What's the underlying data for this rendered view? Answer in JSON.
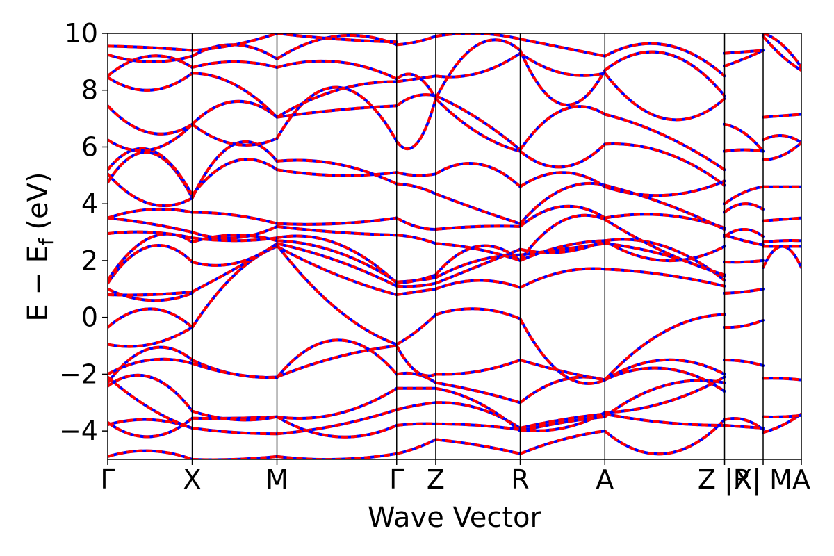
{
  "chart_data": {
    "type": "line",
    "title": "",
    "xlabel": "Wave Vector",
    "ylabel": {
      "main": "E − E",
      "sub": "f",
      "unit": " (eV)"
    },
    "ylim": [
      -5,
      10
    ],
    "y_ticks": [
      10,
      8,
      6,
      4,
      2,
      0,
      -2,
      -4
    ],
    "y_tick_labels": [
      "10",
      "8",
      "6",
      "4",
      "2",
      "0",
      "−2",
      "−4"
    ],
    "x_range": [
      0,
      1
    ],
    "kpoints": [
      {
        "label": "Γ",
        "x": 0.0
      },
      {
        "label": "X",
        "x": 0.1218
      },
      {
        "label": "M",
        "x": 0.244
      },
      {
        "label": "Γ",
        "x": 0.4166
      },
      {
        "label": "Z",
        "x": 0.4729
      },
      {
        "label": "R",
        "x": 0.5947
      },
      {
        "label": "A",
        "x": 0.7167
      },
      {
        "label": "Z |R",
        "x": 0.8893
      },
      {
        "label": "X| M",
        "x": 0.9449
      },
      {
        "label": "A",
        "x": 1.0
      }
    ],
    "colors": {
      "dft": "#ff0000",
      "model": "#0000ff"
    },
    "segments": [
      {
        "x0": 0.0,
        "x1": 0.1218,
        "bands": [
          [
            -4.9,
            -4.7,
            -5.0
          ],
          [
            -3.78,
            -3.6,
            -3.9
          ],
          [
            -3.7,
            -4.2,
            -3.55
          ],
          [
            -2.42,
            -2.1,
            -3.3
          ],
          [
            -2.3,
            -1.1,
            -1.5
          ],
          [
            -2.0,
            -1.5,
            -1.62
          ],
          [
            -2.1,
            -3.2,
            -3.9
          ],
          [
            -0.95,
            -0.95,
            -0.35
          ],
          [
            -0.35,
            0.3,
            -0.35
          ],
          [
            0.8,
            0.8,
            0.9
          ],
          [
            1.0,
            0.6,
            0.85
          ],
          [
            1.2,
            2.5,
            1.95
          ],
          [
            1.3,
            2.8,
            2.65
          ],
          [
            2.95,
            3.0,
            2.8
          ],
          [
            3.5,
            3.3,
            3.0
          ],
          [
            3.5,
            3.8,
            3.7
          ],
          [
            4.75,
            5.8,
            4.2
          ],
          [
            5.05,
            4.0,
            4.2
          ],
          [
            5.2,
            5.9,
            4.3
          ],
          [
            6.25,
            5.9,
            6.8
          ],
          [
            7.45,
            6.5,
            6.8
          ],
          [
            8.45,
            8.0,
            8.6
          ],
          [
            8.5,
            9.2,
            8.8
          ],
          [
            9.25,
            9.0,
            9.2
          ],
          [
            9.55,
            9.5,
            9.4
          ]
        ]
      },
      {
        "x0": 0.1218,
        "x1": 0.244,
        "bands": [
          [
            -5.0,
            -5.0,
            -4.9
          ],
          [
            -3.9,
            -4.05,
            -4.1
          ],
          [
            -3.55,
            -3.55,
            -3.5
          ],
          [
            -3.3,
            -3.6,
            -3.5
          ],
          [
            -1.5,
            -2.0,
            -2.1
          ],
          [
            -1.62,
            -2.0,
            -2.12
          ],
          [
            -0.35,
            1.5,
            2.5
          ],
          [
            0.9,
            1.7,
            2.55
          ],
          [
            1.95,
            1.9,
            2.6
          ],
          [
            2.65,
            2.9,
            2.7
          ],
          [
            2.8,
            2.7,
            2.8
          ],
          [
            3.0,
            2.8,
            3.2
          ],
          [
            3.7,
            3.6,
            3.3
          ],
          [
            4.2,
            6.1,
            5.5
          ],
          [
            4.3,
            5.5,
            5.2
          ],
          [
            6.8,
            6.1,
            6.3
          ],
          [
            6.8,
            7.6,
            7.05
          ],
          [
            8.6,
            8.2,
            7.05
          ],
          [
            8.8,
            9.0,
            8.8
          ],
          [
            9.2,
            9.6,
            9.1
          ],
          [
            9.4,
            9.6,
            10.0
          ]
        ]
      },
      {
        "x0": 0.244,
        "x1": 0.4166,
        "bands": [
          [
            -4.9,
            -5.0,
            -4.8
          ],
          [
            -4.1,
            -3.8,
            -3.25
          ],
          [
            -3.5,
            -3.4,
            -2.5
          ],
          [
            -3.5,
            -4.2,
            -3.8
          ],
          [
            -2.1,
            -1.4,
            -1.0
          ],
          [
            -2.12,
            -0.8,
            -2.0
          ],
          [
            2.5,
            1.5,
            0.8
          ],
          [
            2.55,
            0.3,
            -0.95
          ],
          [
            2.6,
            2.0,
            1.1
          ],
          [
            2.7,
            2.3,
            1.25
          ],
          [
            2.8,
            2.6,
            1.2
          ],
          [
            3.2,
            3.0,
            2.9
          ],
          [
            3.3,
            3.3,
            3.5
          ],
          [
            5.5,
            5.4,
            4.7
          ],
          [
            5.2,
            5.0,
            5.1
          ],
          [
            6.3,
            8.1,
            6.2
          ],
          [
            7.05,
            7.3,
            7.45
          ],
          [
            7.05,
            8.0,
            8.3
          ],
          [
            8.8,
            9.0,
            8.4
          ],
          [
            9.1,
            9.9,
            9.6
          ],
          [
            10.0,
            9.8,
            9.7
          ]
        ]
      },
      {
        "x0": 0.4166,
        "x1": 0.4729,
        "bands": [
          [
            -4.8,
            -4.6,
            -4.3
          ],
          [
            -3.25,
            -3.1,
            -3.0
          ],
          [
            -3.8,
            -3.75,
            -3.75
          ],
          [
            -2.5,
            -2.5,
            -2.5
          ],
          [
            -2.0,
            -2.0,
            -2.3
          ],
          [
            -1.0,
            -1.9,
            -2.0
          ],
          [
            -0.95,
            -0.5,
            0.1
          ],
          [
            0.8,
            0.9,
            1.0
          ],
          [
            1.1,
            1.1,
            1.2
          ],
          [
            1.25,
            1.3,
            1.4
          ],
          [
            1.2,
            1.3,
            1.5
          ],
          [
            2.9,
            2.8,
            2.6
          ],
          [
            3.5,
            3.2,
            3.1
          ],
          [
            4.7,
            4.6,
            4.35
          ],
          [
            5.1,
            5.0,
            5.05
          ],
          [
            6.2,
            6.1,
            7.7
          ],
          [
            7.45,
            7.8,
            7.8
          ],
          [
            8.3,
            8.4,
            8.5
          ],
          [
            8.4,
            8.5,
            7.7
          ],
          [
            9.6,
            9.7,
            9.9
          ]
        ]
      },
      {
        "x0": 0.4729,
        "x1": 0.5947,
        "bands": [
          [
            -4.3,
            -4.5,
            -4.8
          ],
          [
            -3.0,
            -3.2,
            -3.9
          ],
          [
            -3.75,
            -3.8,
            -3.95
          ],
          [
            -2.5,
            -3.0,
            -4.0
          ],
          [
            -2.3,
            -2.6,
            -3.0
          ],
          [
            -2.0,
            -1.9,
            -1.5
          ],
          [
            0.1,
            0.3,
            -0.05
          ],
          [
            1.0,
            1.3,
            1.05
          ],
          [
            1.2,
            1.8,
            2.4
          ],
          [
            1.4,
            2.0,
            2.2
          ],
          [
            1.5,
            2.5,
            2.0
          ],
          [
            2.6,
            2.4,
            2.0
          ],
          [
            3.1,
            3.2,
            3.2
          ],
          [
            4.35,
            3.8,
            3.3
          ],
          [
            5.05,
            5.4,
            4.6
          ],
          [
            7.7,
            6.5,
            5.85
          ],
          [
            7.8,
            7.0,
            5.9
          ],
          [
            8.5,
            8.6,
            9.3
          ],
          [
            7.7,
            9.6,
            9.4
          ],
          [
            9.9,
            10.0,
            9.8
          ]
        ]
      },
      {
        "x0": 0.5947,
        "x1": 0.7167,
        "bands": [
          [
            -4.8,
            -4.3,
            -4.0
          ],
          [
            -3.9,
            -3.6,
            -3.4
          ],
          [
            -3.95,
            -3.9,
            -3.35
          ],
          [
            -4.0,
            -3.7,
            -3.5
          ],
          [
            -3.0,
            -2.2,
            -2.2
          ],
          [
            -1.5,
            -1.9,
            -2.2
          ],
          [
            -0.05,
            -2.0,
            -2.2
          ],
          [
            1.05,
            1.6,
            1.7
          ],
          [
            2.4,
            2.3,
            2.7
          ],
          [
            2.2,
            2.4,
            2.6
          ],
          [
            2.0,
            2.5,
            2.7
          ],
          [
            2.0,
            3.4,
            3.45
          ],
          [
            3.2,
            3.9,
            3.5
          ],
          [
            3.3,
            4.5,
            4.65
          ],
          [
            4.6,
            5.1,
            4.6
          ],
          [
            5.85,
            5.3,
            6.1
          ],
          [
            5.9,
            7.3,
            7.15
          ],
          [
            9.3,
            8.6,
            8.6
          ],
          [
            9.4,
            7.5,
            8.7
          ],
          [
            9.8,
            9.5,
            9.2
          ]
        ]
      },
      {
        "x0": 0.7167,
        "x1": 0.8893,
        "bands": [
          [
            -4.0,
            -4.8,
            -3.6
          ],
          [
            -3.4,
            -3.7,
            -3.8
          ],
          [
            -3.35,
            -3.0,
            -2.1
          ],
          [
            -3.5,
            -2.4,
            -2.3
          ],
          [
            -2.2,
            -1.8,
            -2.6
          ],
          [
            -2.2,
            -1.5,
            -2.0
          ],
          [
            -2.2,
            -0.5,
            0.1
          ],
          [
            1.7,
            1.5,
            1.1
          ],
          [
            2.7,
            2.5,
            1.3
          ],
          [
            2.6,
            2.2,
            1.45
          ],
          [
            2.7,
            2.0,
            2.5
          ],
          [
            3.45,
            2.3,
            1.5
          ],
          [
            3.5,
            3.6,
            3.15
          ],
          [
            4.65,
            4.0,
            3.1
          ],
          [
            4.6,
            4.3,
            4.8
          ],
          [
            6.1,
            5.8,
            4.65
          ],
          [
            7.15,
            6.4,
            5.2
          ],
          [
            8.6,
            7.0,
            7.7
          ],
          [
            8.7,
            9.3,
            7.8
          ],
          [
            9.2,
            9.6,
            8.5
          ]
        ]
      },
      {
        "x0": 0.8893,
        "x1": 0.9449,
        "bands": [
          [
            -3.6,
            -3.6,
            -3.95
          ],
          [
            -3.8,
            -3.85,
            -3.9
          ],
          [
            -1.5,
            -1.55,
            -1.7
          ],
          [
            -0.35,
            -0.3,
            -0.1
          ],
          [
            0.85,
            0.9,
            1.0
          ],
          [
            1.95,
            1.95,
            2.0
          ],
          [
            2.9,
            2.7,
            2.55
          ],
          [
            2.85,
            3.1,
            2.85
          ],
          [
            3.7,
            4.0,
            3.8
          ],
          [
            4.0,
            4.4,
            4.6
          ],
          [
            5.85,
            5.9,
            5.85
          ],
          [
            6.8,
            6.5,
            5.85
          ],
          [
            8.85,
            9.1,
            9.4
          ],
          [
            9.3,
            9.35,
            9.4
          ]
        ]
      },
      {
        "x0": 0.9449,
        "x1": 1.0,
        "bands": [
          [
            -4.05,
            -3.8,
            -3.4
          ],
          [
            -3.5,
            -3.5,
            -3.45
          ],
          [
            -2.15,
            -2.15,
            -2.2
          ],
          [
            1.75,
            2.5,
            1.75
          ],
          [
            2.5,
            2.5,
            2.5
          ],
          [
            2.65,
            2.7,
            2.7
          ],
          [
            3.4,
            3.45,
            3.5
          ],
          [
            4.6,
            4.6,
            4.6
          ],
          [
            5.55,
            5.7,
            6.15
          ],
          [
            6.25,
            6.4,
            6.15
          ],
          [
            7.05,
            7.1,
            7.15
          ],
          [
            9.9,
            9.2,
            8.7
          ],
          [
            10.0,
            9.6,
            8.8
          ]
        ]
      }
    ]
  }
}
